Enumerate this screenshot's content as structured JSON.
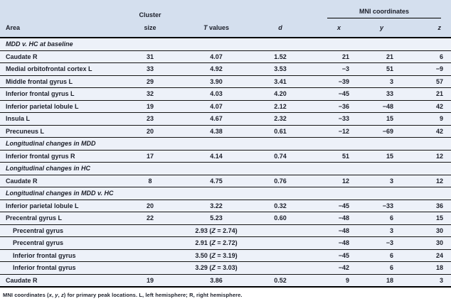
{
  "header": {
    "area": "Area",
    "cluster_line1": "Cluster",
    "cluster_line2": "size",
    "t_values": [
      {
        "text": "T",
        "italic": true
      },
      {
        "text": " values"
      }
    ],
    "d": "d",
    "mni_group": "MNI coordinates",
    "x": "x",
    "y": "y",
    "z": "z"
  },
  "rows": [
    {
      "type": "section",
      "label": "MDD v. HC at baseline"
    },
    {
      "type": "data",
      "indent": false,
      "area": "Caudate R",
      "cluster": "31",
      "t": "4.07",
      "d": "1.52",
      "x": "21",
      "y": "21",
      "z": "6"
    },
    {
      "type": "data",
      "indent": false,
      "area": "Medial orbitofrontal cortex L",
      "cluster": "33",
      "t": "4.92",
      "d": "3.53",
      "x": "−3",
      "y": "51",
      "z": "−9"
    },
    {
      "type": "data",
      "indent": false,
      "area": "Middle frontal gyrus L",
      "cluster": "29",
      "t": "3.90",
      "d": "3.41",
      "x": "−39",
      "y": "3",
      "z": "57"
    },
    {
      "type": "data",
      "indent": false,
      "area": "Inferior frontal gyrus L",
      "cluster": "32",
      "t": "4.03",
      "d": "4.20",
      "x": "−45",
      "y": "33",
      "z": "21"
    },
    {
      "type": "data",
      "indent": false,
      "area": "Inferior parietal lobule L",
      "cluster": "19",
      "t": "4.07",
      "d": "2.12",
      "x": "−36",
      "y": "−48",
      "z": "42"
    },
    {
      "type": "data",
      "indent": false,
      "area": "Insula L",
      "cluster": "23",
      "t": "4.67",
      "d": "2.32",
      "x": "−33",
      "y": "15",
      "z": "9"
    },
    {
      "type": "data",
      "indent": false,
      "area": "Precuneus L",
      "cluster": "20",
      "t": "4.38",
      "d": "0.61",
      "x": "−12",
      "y": "−69",
      "z": "42"
    },
    {
      "type": "section",
      "label": "Longitudinal changes in MDD"
    },
    {
      "type": "data",
      "indent": false,
      "area": "Inferior frontal gyrus R",
      "cluster": "17",
      "t": "4.14",
      "d": "0.74",
      "x": "51",
      "y": "15",
      "z": "12"
    },
    {
      "type": "section",
      "label": "Longitudinal changes in HC"
    },
    {
      "type": "data",
      "indent": false,
      "area": "Caudate R",
      "cluster": "8",
      "t": "4.75",
      "d": "0.76",
      "x": "12",
      "y": "3",
      "z": "12"
    },
    {
      "type": "section",
      "label": "Longitudinal changes in MDD v. HC"
    },
    {
      "type": "data",
      "indent": false,
      "area": "Inferior parietal lobule L",
      "cluster": "20",
      "t": "3.22",
      "d": "0.32",
      "x": "−45",
      "y": "−33",
      "z": "36"
    },
    {
      "type": "data",
      "indent": false,
      "area": "Precentral gyrus L",
      "cluster": "22",
      "t": "5.23",
      "d": "0.60",
      "x": "−48",
      "y": "6",
      "z": "15"
    },
    {
      "type": "data",
      "indent": true,
      "area": "Precentral gyrus",
      "cluster": "",
      "t": [
        {
          "text": "2.93 ("
        },
        {
          "text": "Z",
          "italic": true
        },
        {
          "text": " = 2.74)"
        }
      ],
      "d": "",
      "x": "−48",
      "y": "3",
      "z": "30"
    },
    {
      "type": "data",
      "indent": true,
      "area": "Precentral gyrus",
      "cluster": "",
      "t": [
        {
          "text": "2.91 ("
        },
        {
          "text": "Z",
          "italic": true
        },
        {
          "text": " = 2.72)"
        }
      ],
      "d": "",
      "x": "−48",
      "y": "−3",
      "z": "30"
    },
    {
      "type": "data",
      "indent": true,
      "area": "Inferior frontal gyrus",
      "cluster": "",
      "t": [
        {
          "text": "3.50 ("
        },
        {
          "text": "Z",
          "italic": true
        },
        {
          "text": " = 3.19)"
        }
      ],
      "d": "",
      "x": "−45",
      "y": "6",
      "z": "24"
    },
    {
      "type": "data",
      "indent": true,
      "area": "Inferior frontal gyrus",
      "cluster": "",
      "t": [
        {
          "text": "3.29 ("
        },
        {
          "text": "Z",
          "italic": true
        },
        {
          "text": " = 3.03)"
        }
      ],
      "d": "",
      "x": "−42",
      "y": "6",
      "z": "18"
    },
    {
      "type": "data",
      "indent": false,
      "area": "Caudate R",
      "cluster": "19",
      "t": "3.86",
      "d": "0.52",
      "x": "9",
      "y": "18",
      "z": "3"
    }
  ],
  "footnote": [
    {
      "text": "MNI coordinates ("
    },
    {
      "text": "x",
      "italic": true
    },
    {
      "text": ", "
    },
    {
      "text": "y",
      "italic": true
    },
    {
      "text": ", "
    },
    {
      "text": "z",
      "italic": true
    },
    {
      "text": ") for primary peak locations. L, left hemisphere; R, right hemisphere."
    }
  ],
  "colors": {
    "header_bg": "#d4dfee",
    "row_bg": "#edf1f9",
    "rule": "#000000",
    "text": "#1c1f2a"
  }
}
